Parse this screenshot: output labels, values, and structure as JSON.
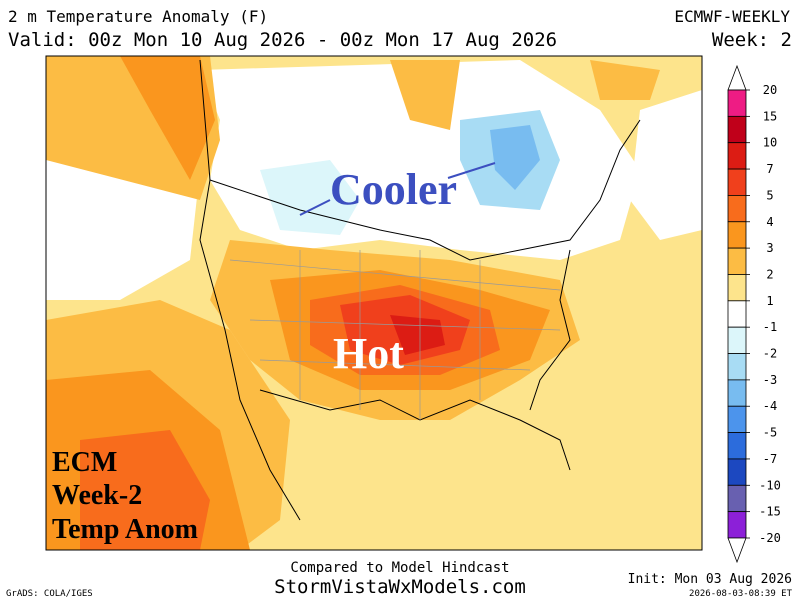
{
  "header": {
    "title": "2 m Temperature Anomaly (F)",
    "model": "ECMWF-WEEKLY",
    "valid": "Valid: 00z Mon 10 Aug 2026 - 00z Mon 17 Aug 2026",
    "week": "Week: 2"
  },
  "map": {
    "annotations": {
      "cooler": "Cooler",
      "hot": "Hot",
      "label_lines": [
        "ECM",
        "Week-2",
        "Temp Anom"
      ]
    }
  },
  "colorbar": {
    "levels": [
      20,
      15,
      10,
      7,
      5,
      4,
      3,
      2,
      1,
      -1,
      -2,
      -3,
      -4,
      -5,
      -7,
      -10,
      -15,
      -20
    ],
    "colors": [
      "#ee1c84",
      "#c0001a",
      "#dc1c14",
      "#f0401c",
      "#f86c1c",
      "#fa961e",
      "#fcbc44",
      "#fde48c",
      "#ffffff",
      "#dcf6fa",
      "#a8dcf4",
      "#78bcf0",
      "#4c94ec",
      "#2c6cdc",
      "#1c48c0",
      "#6860b0",
      "#8c20d8"
    ]
  },
  "footer": {
    "compare": "Compared to Model Hindcast",
    "site": "StormVistaWxModels.com",
    "init": "Init: Mon 03 Aug 2026",
    "grads": "GrADS: COLA/IGES",
    "timestamp": "2026-08-03-08:39 ET"
  }
}
